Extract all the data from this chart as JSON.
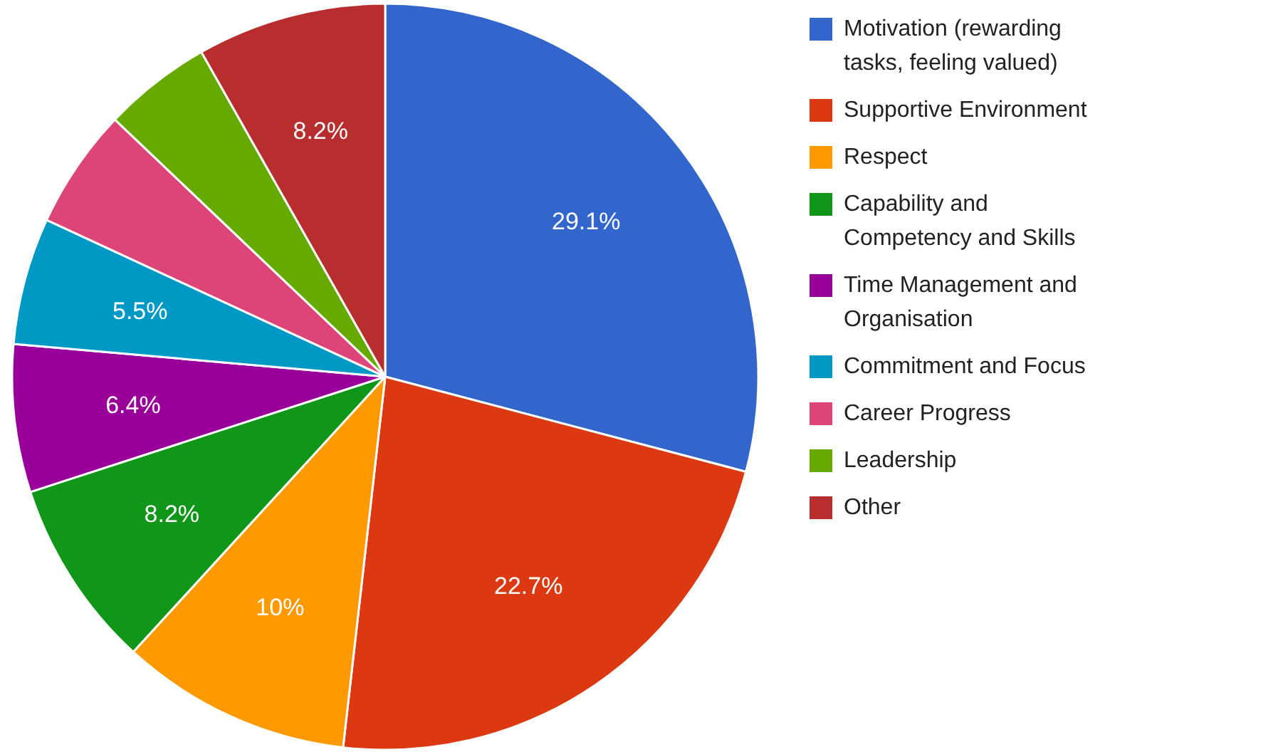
{
  "chart_data": {
    "type": "pie",
    "categories": [
      "Motivation (rewarding tasks, feeling valued)",
      "Supportive Environment",
      "Respect",
      "Capability and Competency and Skills",
      "Time Management and Organisation",
      "Commitment and Focus",
      "Career Progress",
      "Leadership",
      "Other"
    ],
    "values": [
      29.1,
      22.7,
      10,
      8.2,
      6.4,
      5.5,
      5.2,
      4.7,
      8.2
    ],
    "value_labels": [
      "29.1%",
      "22.7%",
      "10%",
      "8.2%",
      "6.4%",
      "5.5%",
      null,
      null,
      "8.2%"
    ],
    "colors": [
      "#3366cc",
      "#dc3912",
      "#ff9900",
      "#109618",
      "#990099",
      "#0099c6",
      "#dd4477",
      "#66aa00",
      "#b82e2e"
    ],
    "legend": "right"
  }
}
